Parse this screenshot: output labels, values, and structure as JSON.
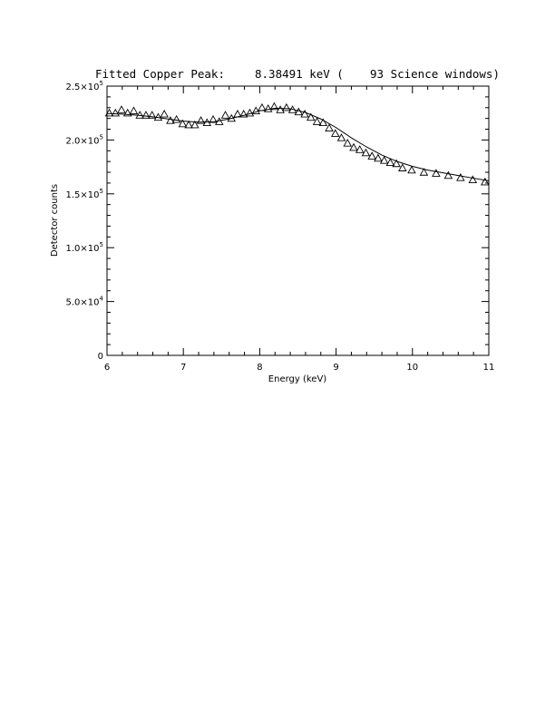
{
  "chart_data": {
    "type": "scatter",
    "title": {
      "label": "Fitted Copper Peak:",
      "energy": "8.38491 keV (",
      "windows": "93 Science windows)"
    },
    "xlabel": "Energy (keV)",
    "ylabel": "Detector counts",
    "xlim": [
      6,
      11
    ],
    "ylim": [
      0,
      250000
    ],
    "x_ticks": [
      6,
      7,
      8,
      9,
      10,
      11
    ],
    "x_tick_labels": [
      "6",
      "7",
      "8",
      "9",
      "10",
      "11"
    ],
    "y_ticks": [
      0,
      50000,
      100000,
      150000,
      200000,
      250000
    ],
    "y_tick_labels": [
      {
        "mant": "0",
        "exp": ""
      },
      {
        "mant": "5.0×10",
        "exp": "4"
      },
      {
        "mant": "1.0×10",
        "exp": "5"
      },
      {
        "mant": "1.5×10",
        "exp": "5"
      },
      {
        "mant": "2.0×10",
        "exp": "5"
      },
      {
        "mant": "2.5×10",
        "exp": "5"
      }
    ],
    "grid": false,
    "series": [
      {
        "marker": "triangle",
        "x": [
          6.03,
          6.11,
          6.19,
          6.27,
          6.35,
          6.43,
          6.51,
          6.59,
          6.67,
          6.75,
          6.83,
          6.91,
          6.99,
          7.07,
          7.15,
          7.23,
          7.31,
          7.39,
          7.47,
          7.55,
          7.63,
          7.71,
          7.79,
          7.87,
          7.95,
          8.03,
          8.11,
          8.19,
          8.27,
          8.35,
          8.43,
          8.51,
          8.59,
          8.67,
          8.75,
          8.83,
          8.91,
          8.99,
          9.07,
          9.15,
          9.23,
          9.31,
          9.39,
          9.47,
          9.55,
          9.63,
          9.71,
          9.79,
          9.87,
          9.99,
          10.15,
          10.31,
          10.47,
          10.63,
          10.79,
          10.95
        ],
        "y": [
          225000,
          225000,
          228000,
          225000,
          227000,
          223000,
          223000,
          223000,
          221000,
          224000,
          218000,
          219000,
          215000,
          214000,
          214000,
          218000,
          216000,
          219000,
          217000,
          223000,
          220000,
          224000,
          224000,
          225000,
          227000,
          230000,
          229000,
          231000,
          228000,
          230000,
          228000,
          226000,
          224000,
          221000,
          217000,
          216000,
          211000,
          206000,
          202000,
          197000,
          193000,
          191000,
          188000,
          185000,
          183000,
          181000,
          179000,
          178000,
          174000,
          172000,
          170000,
          169000,
          167000,
          165000,
          163000,
          161000
        ]
      },
      {
        "marker": "line",
        "x": [
          6.0,
          6.2,
          6.4,
          6.6,
          6.8,
          7.0,
          7.2,
          7.4,
          7.6,
          7.8,
          8.0,
          8.2,
          8.4,
          8.6,
          8.8,
          9.0,
          9.2,
          9.4,
          9.6,
          9.8,
          10.0,
          10.2,
          10.4,
          10.6,
          10.8,
          11.0
        ],
        "y": [
          224500,
          224000,
          223000,
          221500,
          219500,
          217500,
          216500,
          217000,
          219500,
          223000,
          227000,
          229500,
          229000,
          225500,
          219500,
          211500,
          202000,
          193500,
          186000,
          180000,
          175500,
          172000,
          169500,
          167000,
          164500,
          162000
        ]
      }
    ]
  }
}
